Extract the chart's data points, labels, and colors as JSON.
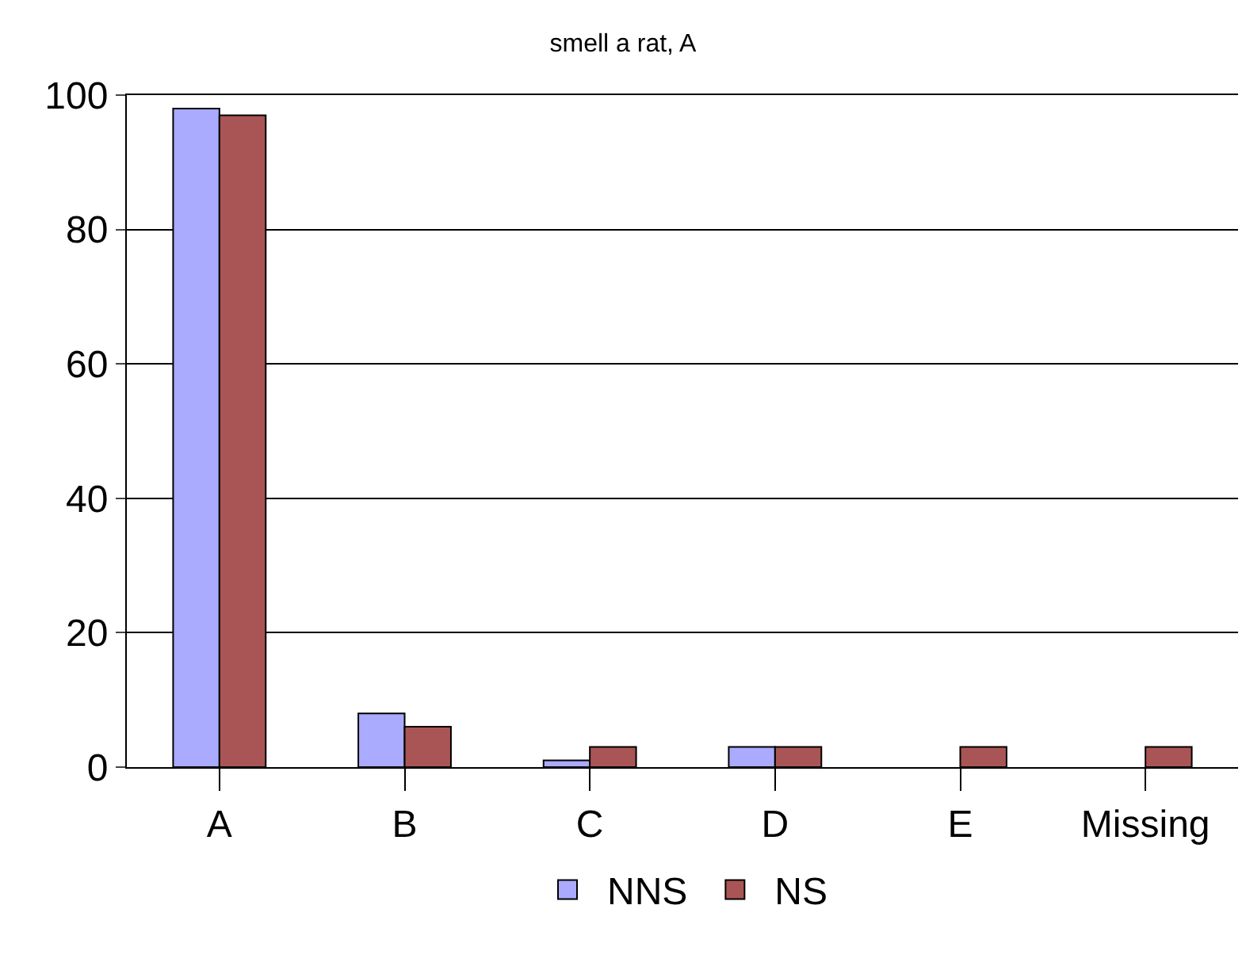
{
  "chart_data": {
    "type": "bar",
    "title": "smell a rat, A",
    "categories": [
      "A",
      "B",
      "C",
      "D",
      "E",
      "Missing"
    ],
    "series": [
      {
        "name": "NNS",
        "color": "#aaaaff",
        "values": [
          98,
          8,
          1,
          3,
          null,
          null
        ]
      },
      {
        "name": "NS",
        "color": "#aa5555",
        "values": [
          97,
          6,
          3,
          3,
          3,
          3
        ]
      }
    ],
    "ylim": [
      0,
      100
    ],
    "yticks": [
      0,
      20,
      40,
      60,
      80,
      100
    ],
    "grid": "y",
    "legend": "bottom"
  }
}
